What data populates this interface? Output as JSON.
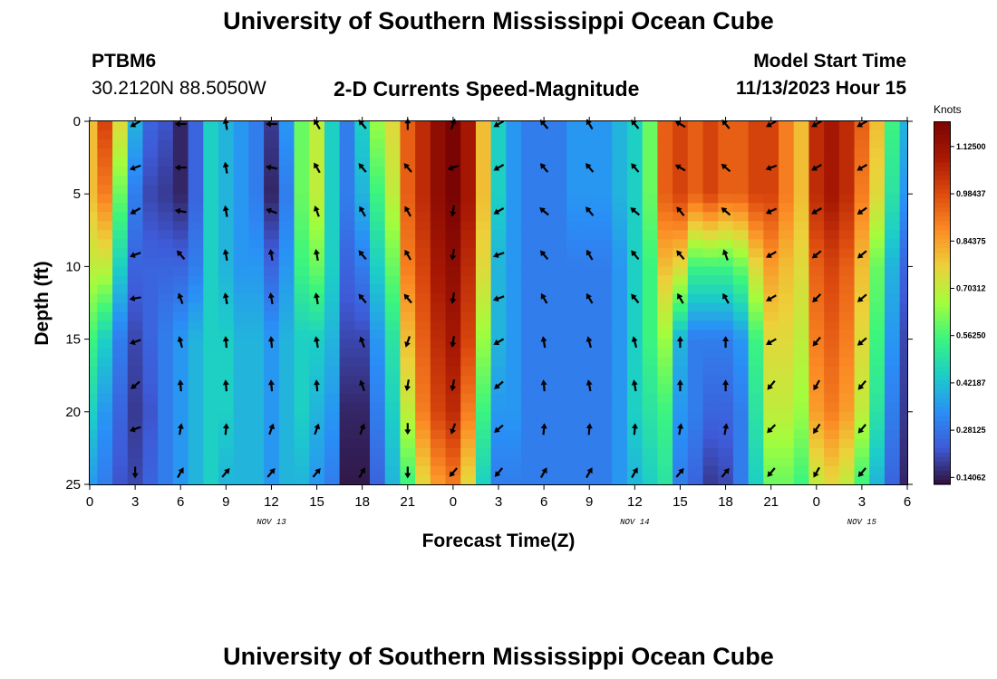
{
  "header": {
    "title": "University of Southern Mississippi Ocean Cube",
    "station": "PTBM6",
    "coords": "30.2120N  88.5050W",
    "subtitle": "2-D Currents Speed-Magnitude",
    "model_start_label": "Model Start Time",
    "model_start_value": "11/13/2023 Hour 15"
  },
  "footer": {
    "title": "University of Southern Mississippi Ocean Cube"
  },
  "colorbar": {
    "unit": "Knots",
    "tick_labels": [
      "1.12500",
      "0.98437",
      "0.84375",
      "0.70312",
      "0.56250",
      "0.42187",
      "0.28125",
      "0.14062"
    ],
    "tick_values": [
      1.125,
      0.98437,
      0.84375,
      0.70312,
      0.5625,
      0.42187,
      0.28125,
      0.14062
    ],
    "range": [
      0.12,
      1.2
    ],
    "colors": [
      "#30123b",
      "#3e5ad7",
      "#2a8ff7",
      "#1ccdc8",
      "#3bf57e",
      "#a3fd3d",
      "#ecd13a",
      "#fc8c25",
      "#dd4b0e",
      "#a81803",
      "#7a0403"
    ]
  },
  "chart_data": {
    "type": "heatmap",
    "title": "2-D Currents Speed-Magnitude",
    "xlabel": "Forecast Time(Z)",
    "ylabel": "Depth (ft)",
    "x_tick_labels": [
      "0",
      "3",
      "6",
      "9",
      "12",
      "15",
      "18",
      "21",
      "0",
      "3",
      "6",
      "9",
      "12",
      "15",
      "18",
      "21",
      "0",
      "3",
      "6"
    ],
    "x_tick_hours": [
      0,
      3,
      6,
      9,
      12,
      15,
      18,
      21,
      24,
      27,
      30,
      33,
      36,
      39,
      42,
      45,
      48,
      51,
      54
    ],
    "date_labels": [
      {
        "text": "NOV 13",
        "hour": 12
      },
      {
        "text": "NOV 14",
        "hour": 36
      },
      {
        "text": "NOV 15",
        "hour": 51
      }
    ],
    "xlim": [
      0,
      54
    ],
    "y_tick_labels": [
      "0",
      "5",
      "10",
      "15",
      "20",
      "25"
    ],
    "y_tick_values": [
      0,
      5,
      10,
      15,
      20,
      25
    ],
    "ylim": [
      0,
      25
    ],
    "depths": [
      0,
      5,
      10,
      15,
      20,
      25
    ],
    "hours": [
      0,
      1,
      2,
      3,
      4,
      5,
      6,
      7,
      8,
      9,
      10,
      11,
      12,
      13,
      14,
      15,
      16,
      17,
      18,
      19,
      20,
      21,
      22,
      23,
      24,
      25,
      26,
      27,
      28,
      29,
      30,
      31,
      32,
      33,
      34,
      35,
      36,
      37,
      38,
      39,
      40,
      41,
      42,
      43,
      44,
      45,
      46,
      47,
      48,
      49,
      50,
      51,
      52,
      53,
      54
    ],
    "speed_knots": [
      [
        0.8,
        1.0,
        0.75,
        0.4,
        0.25,
        0.22,
        0.15,
        0.25,
        0.45,
        0.4,
        0.35,
        0.3,
        0.18,
        0.35,
        0.6,
        0.7,
        0.45,
        0.3,
        0.45,
        0.65,
        0.75,
        0.95,
        1.05,
        1.15,
        1.2,
        1.1,
        0.8,
        0.45,
        0.35,
        0.3,
        0.3,
        0.3,
        0.35,
        0.35,
        0.35,
        0.4,
        0.45,
        0.6,
        0.95,
        1.0,
        0.95,
        1.0,
        0.95,
        0.95,
        1.0,
        1.0,
        0.9,
        0.8,
        1.05,
        1.1,
        1.05,
        0.95,
        0.8,
        0.55,
        0.4
      ],
      [
        0.8,
        0.9,
        0.6,
        0.3,
        0.2,
        0.18,
        0.15,
        0.25,
        0.45,
        0.4,
        0.35,
        0.3,
        0.15,
        0.3,
        0.6,
        0.7,
        0.45,
        0.3,
        0.4,
        0.55,
        0.7,
        0.95,
        1.05,
        1.15,
        1.2,
        1.1,
        0.8,
        0.45,
        0.35,
        0.3,
        0.3,
        0.3,
        0.35,
        0.35,
        0.35,
        0.4,
        0.45,
        0.6,
        0.95,
        1.0,
        0.95,
        1.0,
        0.95,
        0.95,
        1.0,
        1.0,
        0.9,
        0.8,
        1.05,
        1.1,
        1.05,
        0.9,
        0.75,
        0.5,
        0.35
      ],
      [
        0.7,
        0.7,
        0.45,
        0.25,
        0.25,
        0.25,
        0.25,
        0.3,
        0.45,
        0.4,
        0.35,
        0.35,
        0.25,
        0.35,
        0.55,
        0.6,
        0.45,
        0.25,
        0.3,
        0.45,
        0.6,
        0.9,
        1.0,
        1.1,
        1.15,
        1.05,
        0.75,
        0.4,
        0.35,
        0.3,
        0.3,
        0.3,
        0.3,
        0.3,
        0.3,
        0.35,
        0.45,
        0.55,
        0.8,
        0.75,
        0.55,
        0.55,
        0.55,
        0.6,
        0.75,
        0.85,
        0.8,
        0.75,
        0.95,
        1.0,
        0.95,
        0.8,
        0.6,
        0.4,
        0.25
      ],
      [
        0.55,
        0.45,
        0.3,
        0.2,
        0.25,
        0.3,
        0.35,
        0.4,
        0.45,
        0.45,
        0.4,
        0.4,
        0.35,
        0.4,
        0.45,
        0.45,
        0.4,
        0.2,
        0.2,
        0.35,
        0.5,
        0.8,
        0.95,
        1.05,
        1.1,
        1.0,
        0.65,
        0.4,
        0.35,
        0.3,
        0.3,
        0.3,
        0.3,
        0.3,
        0.3,
        0.35,
        0.45,
        0.55,
        0.65,
        0.4,
        0.3,
        0.3,
        0.3,
        0.35,
        0.55,
        0.75,
        0.75,
        0.7,
        0.9,
        0.95,
        0.9,
        0.75,
        0.55,
        0.35,
        0.2
      ],
      [
        0.45,
        0.35,
        0.25,
        0.18,
        0.22,
        0.3,
        0.35,
        0.4,
        0.45,
        0.45,
        0.4,
        0.4,
        0.35,
        0.4,
        0.45,
        0.4,
        0.35,
        0.15,
        0.15,
        0.3,
        0.45,
        0.7,
        0.9,
        1.0,
        1.05,
        0.9,
        0.55,
        0.35,
        0.35,
        0.3,
        0.3,
        0.3,
        0.3,
        0.3,
        0.3,
        0.35,
        0.45,
        0.5,
        0.55,
        0.35,
        0.3,
        0.25,
        0.25,
        0.3,
        0.5,
        0.7,
        0.7,
        0.65,
        0.85,
        0.9,
        0.85,
        0.7,
        0.5,
        0.3,
        0.18
      ],
      [
        0.35,
        0.3,
        0.22,
        0.2,
        0.25,
        0.3,
        0.35,
        0.4,
        0.45,
        0.4,
        0.4,
        0.4,
        0.35,
        0.4,
        0.4,
        0.35,
        0.3,
        0.13,
        0.13,
        0.25,
        0.4,
        0.55,
        0.75,
        0.85,
        0.9,
        0.75,
        0.45,
        0.3,
        0.3,
        0.3,
        0.3,
        0.3,
        0.3,
        0.3,
        0.3,
        0.35,
        0.4,
        0.45,
        0.5,
        0.3,
        0.25,
        0.18,
        0.2,
        0.3,
        0.45,
        0.6,
        0.6,
        0.55,
        0.7,
        0.75,
        0.7,
        0.55,
        0.4,
        0.25,
        0.15
      ]
    ],
    "vector_depths": [
      0,
      3,
      6,
      9,
      12,
      15,
      18,
      21,
      24
    ],
    "vector_hours": [
      3,
      6,
      9,
      12,
      15,
      18,
      21,
      24,
      27,
      30,
      33,
      36,
      39,
      42,
      45,
      48,
      51
    ],
    "direction_deg": [
      [
        240,
        270,
        350,
        270,
        330,
        320,
        360,
        20,
        240,
        320,
        330,
        320,
        300,
        320,
        240,
        240,
        240
      ],
      [
        250,
        270,
        350,
        280,
        330,
        320,
        320,
        250,
        240,
        320,
        320,
        320,
        300,
        310,
        250,
        240,
        240
      ],
      [
        240,
        280,
        350,
        290,
        340,
        330,
        330,
        190,
        240,
        310,
        320,
        310,
        320,
        310,
        245,
        240,
        235
      ],
      [
        250,
        320,
        350,
        350,
        350,
        320,
        330,
        190,
        250,
        320,
        330,
        320,
        320,
        340,
        240,
        230,
        230
      ],
      [
        260,
        340,
        350,
        350,
        350,
        320,
        320,
        190,
        250,
        330,
        330,
        320,
        330,
        330,
        240,
        225,
        230
      ],
      [
        250,
        345,
        355,
        355,
        350,
        340,
        200,
        190,
        240,
        350,
        345,
        345,
        360,
        360,
        240,
        220,
        230
      ],
      [
        230,
        355,
        355,
        355,
        355,
        340,
        190,
        190,
        230,
        355,
        350,
        350,
        360,
        360,
        220,
        210,
        220
      ],
      [
        250,
        10,
        5,
        20,
        20,
        20,
        180,
        200,
        230,
        5,
        5,
        5,
        10,
        10,
        225,
        215,
        220
      ],
      [
        180,
        30,
        40,
        40,
        40,
        30,
        180,
        220,
        220,
        30,
        30,
        30,
        40,
        40,
        220,
        210,
        220
      ]
    ]
  }
}
